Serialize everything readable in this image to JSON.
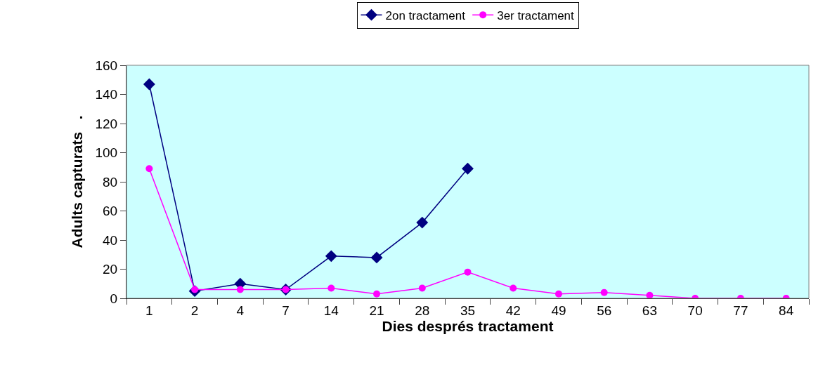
{
  "chart_data": {
    "type": "line",
    "xlabel": "Dies després tractament",
    "ylabel": "Adults capturats   .",
    "categories": [
      "1",
      "2",
      "4",
      "7",
      "14",
      "21",
      "28",
      "35",
      "42",
      "49",
      "56",
      "63",
      "70",
      "77",
      "84"
    ],
    "series": [
      {
        "name": "2on tractament",
        "color": "#000080",
        "marker": "diamond",
        "values": [
          147,
          5,
          10,
          6,
          29,
          28,
          52,
          89,
          null,
          null,
          null,
          null,
          null,
          null,
          null
        ]
      },
      {
        "name": "3er tractament",
        "color": "#ff00ff",
        "marker": "circle",
        "values": [
          89,
          6,
          6,
          6,
          7,
          3,
          7,
          18,
          7,
          3,
          4,
          2,
          0,
          0,
          0
        ]
      }
    ],
    "ylim": [
      0,
      160
    ],
    "yticks": [
      0,
      20,
      40,
      60,
      80,
      100,
      120,
      140,
      160
    ],
    "grid": false,
    "legend": "top",
    "line_style": "solid"
  }
}
